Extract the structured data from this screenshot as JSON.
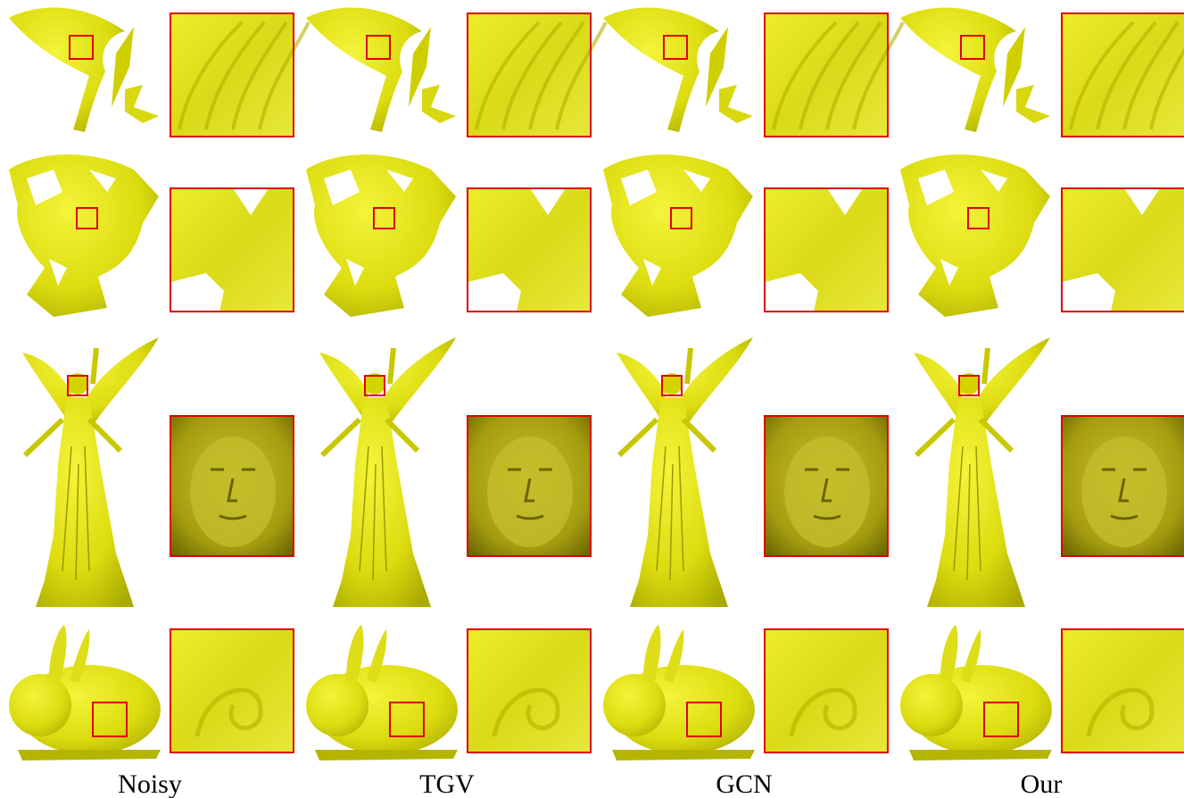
{
  "columns": [
    "Noisy",
    "TGV",
    "GCN",
    "Our"
  ]
}
